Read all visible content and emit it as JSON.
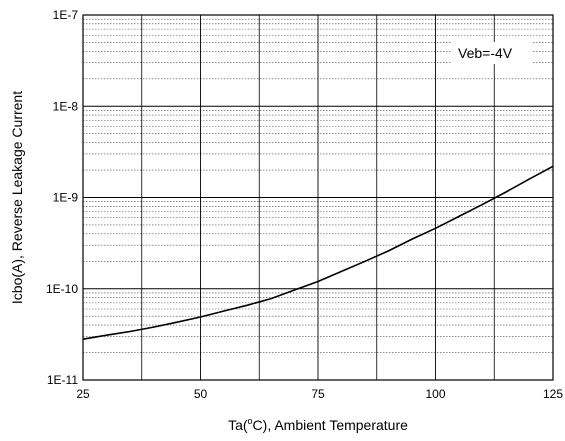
{
  "chart_data": {
    "type": "line",
    "title": "",
    "xlabel_pre": "Ta(",
    "xlabel_sup": "o",
    "xlabel_post": "C), Ambient Temperature",
    "ylabel": "Icbo(A), Reverse Leakage Current",
    "xlim": [
      25,
      125
    ],
    "ylim": [
      1e-11,
      1e-07
    ],
    "yscale": "log",
    "grid": true,
    "x_ticks": [
      25,
      50,
      75,
      100,
      125
    ],
    "x_tick_labels": [
      "25",
      "50",
      "75",
      "100",
      "125"
    ],
    "y_ticks": [
      1e-11,
      1e-10,
      1e-09,
      1e-08,
      1e-07
    ],
    "y_tick_labels": [
      "1E-11",
      "1E-10",
      "1E-9",
      "1E-8",
      "1E-7"
    ],
    "annotation": "Veb=-4V",
    "series": [
      {
        "x": [
          25,
          30,
          35,
          40,
          45,
          50,
          55,
          60,
          65,
          70,
          75,
          80,
          85,
          90,
          95,
          100,
          105,
          110,
          115,
          120,
          125
        ],
        "y": [
          2.8e-11,
          3.1e-11,
          3.4e-11,
          3.8e-11,
          4.3e-11,
          4.9e-11,
          5.7e-11,
          6.6e-11,
          7.8e-11,
          9.7e-11,
          1.2e-10,
          1.55e-10,
          2e-10,
          2.6e-10,
          3.5e-10,
          4.6e-10,
          6.2e-10,
          8.4e-10,
          1.15e-09,
          1.6e-09,
          2.2e-09
        ]
      }
    ]
  }
}
